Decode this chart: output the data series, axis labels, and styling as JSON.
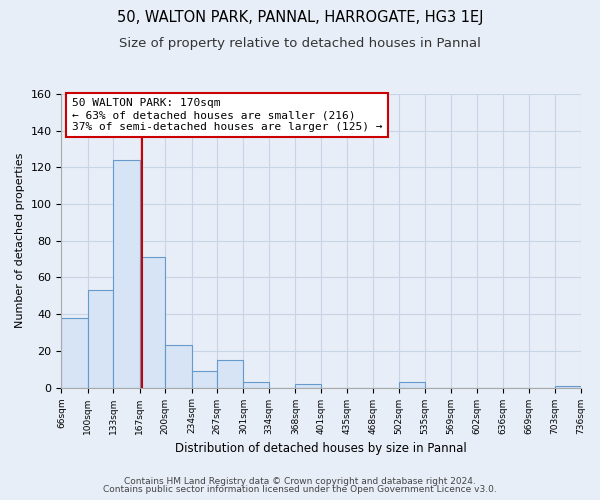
{
  "title1": "50, WALTON PARK, PANNAL, HARROGATE, HG3 1EJ",
  "title2": "Size of property relative to detached houses in Pannal",
  "xlabel": "Distribution of detached houses by size in Pannal",
  "ylabel": "Number of detached properties",
  "bin_edges": [
    66,
    100,
    133,
    167,
    200,
    234,
    267,
    301,
    334,
    368,
    401,
    435,
    468,
    502,
    535,
    569,
    602,
    636,
    669,
    703,
    736
  ],
  "bin_counts": [
    38,
    53,
    124,
    71,
    23,
    9,
    15,
    3,
    0,
    2,
    0,
    0,
    0,
    3,
    0,
    0,
    0,
    0,
    0,
    1
  ],
  "bar_color": "#d6e4f5",
  "bar_edge_color": "#6699cc",
  "vline_x": 170,
  "vline_color": "#cc0000",
  "annotation_line1": "50 WALTON PARK: 170sqm",
  "annotation_line2": "← 63% of detached houses are smaller (216)",
  "annotation_line3": "37% of semi-detached houses are larger (125) →",
  "annotation_box_color": "white",
  "annotation_box_edge": "#cc0000",
  "tick_labels": [
    "66sqm",
    "100sqm",
    "133sqm",
    "167sqm",
    "200sqm",
    "234sqm",
    "267sqm",
    "301sqm",
    "334sqm",
    "368sqm",
    "401sqm",
    "435sqm",
    "468sqm",
    "502sqm",
    "535sqm",
    "569sqm",
    "602sqm",
    "636sqm",
    "669sqm",
    "703sqm",
    "736sqm"
  ],
  "ylim": [
    0,
    160
  ],
  "yticks": [
    0,
    20,
    40,
    60,
    80,
    100,
    120,
    140,
    160
  ],
  "footer1": "Contains HM Land Registry data © Crown copyright and database right 2024.",
  "footer2": "Contains public sector information licensed under the Open Government Licence v3.0.",
  "bg_color": "#e8eef7",
  "grid_color": "#c8d4e8",
  "title1_fontsize": 10.5,
  "title2_fontsize": 9.5,
  "annot_fontsize": 8,
  "footer_fontsize": 6.5
}
